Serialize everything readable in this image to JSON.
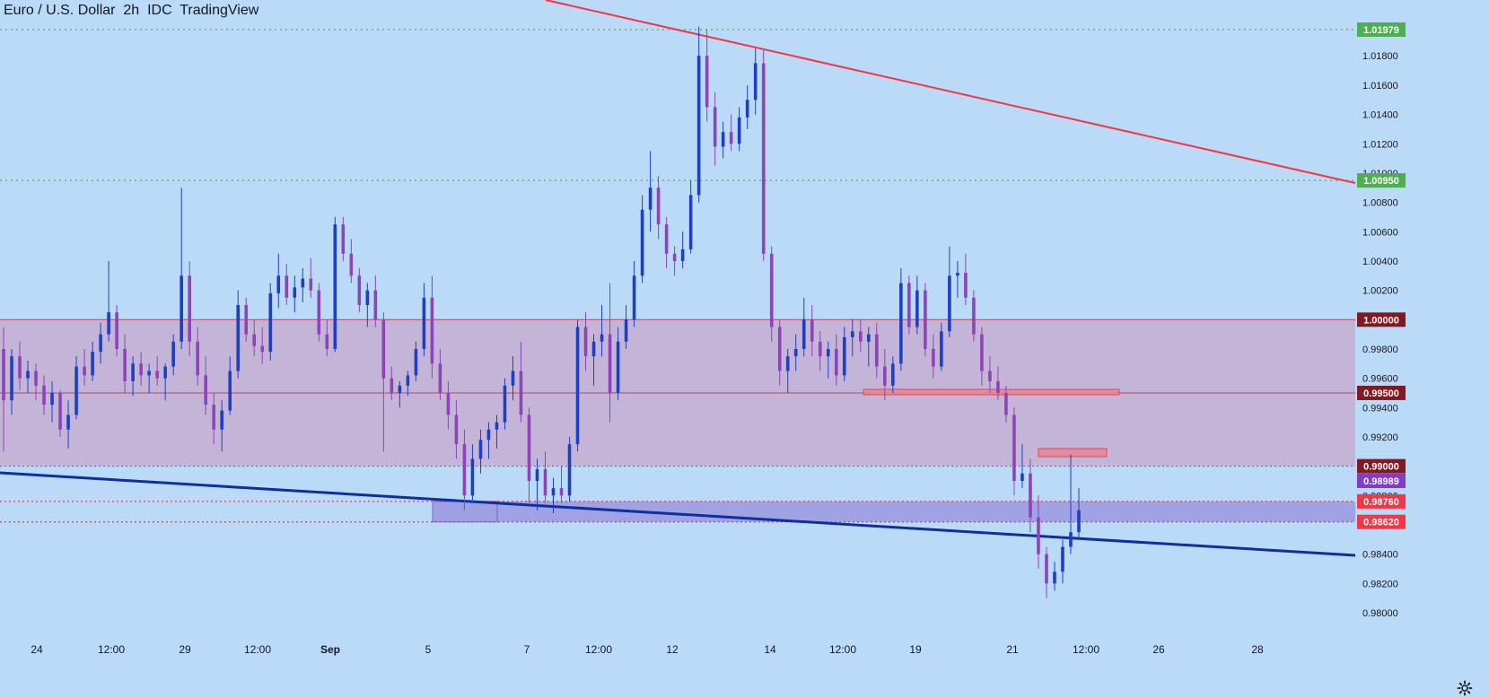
{
  "header": {
    "symbol": "Euro / U.S. Dollar",
    "interval": "2h",
    "source": "IDC",
    "platform": "TradingView"
  },
  "colors": {
    "background": "#bbdaf8",
    "candle_up": "#1e3fc4",
    "candle_down": "#8c44b6",
    "range_zone": "#c4b3d6",
    "support_zone": "#9f9fe3",
    "resistance_trendline": "#f23645",
    "support_trendline": "#0d2fa0",
    "level_line": "#b34766",
    "green_label": "#4caf50",
    "darkred_label": "#801922",
    "red_label": "#f23645",
    "purple_label": "#7e3ec7"
  },
  "icons": {
    "settings": "gear-icon"
  },
  "chart_data": {
    "type": "candlestick",
    "title": "Euro / U.S. Dollar · 2h · IDC",
    "y_axis": {
      "range": [
        0.979,
        1.0205
      ],
      "ticks": [
        "0.98000",
        "0.98200",
        "0.98400",
        "0.98600",
        "0.98800",
        "0.99200",
        "0.99400",
        "0.99600",
        "0.99800",
        "1.00200",
        "1.00400",
        "1.00600",
        "1.00800",
        "1.01000",
        "1.01200",
        "1.01400",
        "1.01600",
        "1.01800"
      ]
    },
    "x_axis": {
      "ticks": [
        "24",
        "12:00",
        "29",
        "12:00",
        "Sep",
        "5",
        "7",
        "12:00",
        "12",
        "14",
        "12:00",
        "19",
        "21",
        "12:00",
        "26",
        "28"
      ]
    },
    "price_labels": [
      {
        "value": "1.01979",
        "style": "green"
      },
      {
        "value": "1.00950",
        "style": "green"
      },
      {
        "value": "1.00000",
        "style": "darkred"
      },
      {
        "value": "0.99500",
        "style": "darkred"
      },
      {
        "value": "0.99000",
        "style": "darkred"
      },
      {
        "value": "0.98989",
        "style": "purple"
      },
      {
        "value": "0.98760",
        "style": "red"
      },
      {
        "value": "0.98620",
        "style": "red"
      }
    ],
    "horizontal_levels": [
      {
        "price": 1.01979,
        "style": "green-dotted"
      },
      {
        "price": 1.0095,
        "style": "green-dotted"
      },
      {
        "price": 1.0,
        "style": "level"
      },
      {
        "price": 0.995,
        "style": "level"
      },
      {
        "price": 0.99,
        "style": "level-dotted"
      },
      {
        "price": 0.9876,
        "style": "red-dotted"
      },
      {
        "price": 0.9862,
        "style": "red-dotted"
      }
    ],
    "zones": [
      {
        "name": "range",
        "from": 0.99,
        "to": 1.0
      },
      {
        "name": "support",
        "from": 0.9862,
        "to": 0.9876
      }
    ],
    "trendlines": [
      {
        "name": "resistance",
        "from_price": 1.0225,
        "to_price": 1.0093
      },
      {
        "name": "support",
        "from_price": 0.9895,
        "to_price": 0.9838
      }
    ],
    "candles": [
      [
        0.998,
        0.9995,
        0.991,
        0.9945
      ],
      [
        0.9945,
        0.998,
        0.9935,
        0.9975
      ],
      [
        0.9975,
        0.9985,
        0.9952,
        0.996
      ],
      [
        0.996,
        0.9972,
        0.995,
        0.9965
      ],
      [
        0.9965,
        0.997,
        0.9945,
        0.9955
      ],
      [
        0.9955,
        0.9962,
        0.9935,
        0.9942
      ],
      [
        0.9942,
        0.9958,
        0.993,
        0.995
      ],
      [
        0.995,
        0.9952,
        0.992,
        0.9925
      ],
      [
        0.9925,
        0.9945,
        0.9912,
        0.9935
      ],
      [
        0.9935,
        0.9975,
        0.9932,
        0.9968
      ],
      [
        0.9968,
        0.998,
        0.9955,
        0.9962
      ],
      [
        0.9962,
        0.9985,
        0.9958,
        0.9978
      ],
      [
        0.9978,
        0.9998,
        0.997,
        0.999
      ],
      [
        0.999,
        1.004,
        0.9985,
        1.0005
      ],
      [
        1.0005,
        1.001,
        0.9975,
        0.998
      ],
      [
        0.998,
        0.999,
        0.995,
        0.9958
      ],
      [
        0.9958,
        0.9975,
        0.9948,
        0.997
      ],
      [
        0.997,
        0.9978,
        0.9955,
        0.9962
      ],
      [
        0.9962,
        0.997,
        0.995,
        0.9965
      ],
      [
        0.9965,
        0.9975,
        0.9955,
        0.996
      ],
      [
        0.996,
        0.997,
        0.9945,
        0.9968
      ],
      [
        0.9968,
        0.999,
        0.9962,
        0.9985
      ],
      [
        0.9985,
        1.009,
        0.998,
        1.003
      ],
      [
        1.003,
        1.004,
        0.9975,
        0.9985
      ],
      [
        0.9985,
        0.9995,
        0.9955,
        0.9962
      ],
      [
        0.9962,
        0.9975,
        0.9935,
        0.9942
      ],
      [
        0.9942,
        0.995,
        0.9915,
        0.9925
      ],
      [
        0.9925,
        0.9945,
        0.991,
        0.9938
      ],
      [
        0.9938,
        0.9975,
        0.9935,
        0.9965
      ],
      [
        0.9965,
        1.002,
        0.996,
        1.001
      ],
      [
        1.001,
        1.0015,
        0.9985,
        0.999
      ],
      [
        0.999,
        1.0,
        0.9975,
        0.9982
      ],
      [
        0.9982,
        0.9995,
        0.997,
        0.9978
      ],
      [
        0.9978,
        1.0025,
        0.9972,
        1.0018
      ],
      [
        1.0018,
        1.0045,
        1.0008,
        1.003
      ],
      [
        1.003,
        1.0038,
        1.001,
        1.0015
      ],
      [
        1.0015,
        1.003,
        1.0005,
        1.0022
      ],
      [
        1.0022,
        1.0035,
        1.0012,
        1.0028
      ],
      [
        1.0028,
        1.0042,
        1.0015,
        1.002
      ],
      [
        1.002,
        1.0025,
        0.9985,
        0.999
      ],
      [
        0.999,
        1.0,
        0.9975,
        0.998
      ],
      [
        0.998,
        1.007,
        0.9978,
        1.0065
      ],
      [
        1.0065,
        1.007,
        1.004,
        1.0045
      ],
      [
        1.0045,
        1.0055,
        1.0025,
        1.003
      ],
      [
        1.003,
        1.0035,
        1.0005,
        1.001
      ],
      [
        1.001,
        1.0025,
        0.9995,
        1.002
      ],
      [
        1.002,
        1.003,
        0.9995,
        1.0
      ],
      [
        1.0,
        1.0005,
        0.991,
        0.996
      ],
      [
        0.996,
        0.9968,
        0.9945,
        0.995
      ],
      [
        0.995,
        0.9958,
        0.994,
        0.9955
      ],
      [
        0.9955,
        0.9965,
        0.9948,
        0.9962
      ],
      [
        0.9962,
        0.9985,
        0.9958,
        0.998
      ],
      [
        0.998,
        1.0025,
        0.9975,
        1.0015
      ],
      [
        1.0015,
        1.003,
        0.996,
        0.997
      ],
      [
        0.997,
        0.998,
        0.9945,
        0.995
      ],
      [
        0.995,
        0.9958,
        0.9925,
        0.9935
      ],
      [
        0.9935,
        0.9945,
        0.9905,
        0.9915
      ],
      [
        0.9915,
        0.9925,
        0.987,
        0.988
      ],
      [
        0.988,
        0.9915,
        0.9875,
        0.9905
      ],
      [
        0.9905,
        0.9925,
        0.9895,
        0.9918
      ],
      [
        0.9918,
        0.993,
        0.9905,
        0.9925
      ],
      [
        0.9925,
        0.9935,
        0.9912,
        0.993
      ],
      [
        0.993,
        0.996,
        0.9925,
        0.9955
      ],
      [
        0.9955,
        0.9975,
        0.9945,
        0.9965
      ],
      [
        0.9965,
        0.9985,
        0.993,
        0.9935
      ],
      [
        0.9935,
        0.994,
        0.9875,
        0.989
      ],
      [
        0.989,
        0.9905,
        0.987,
        0.9898
      ],
      [
        0.9898,
        0.991,
        0.9875,
        0.988
      ],
      [
        0.988,
        0.9892,
        0.9868,
        0.9885
      ],
      [
        0.9885,
        0.99,
        0.9875,
        0.988
      ],
      [
        0.988,
        0.992,
        0.9876,
        0.9915
      ],
      [
        0.9915,
        1.0,
        0.991,
        0.9995
      ],
      [
        0.9995,
        1.0005,
        0.9965,
        0.9975
      ],
      [
        0.9975,
        0.999,
        0.9955,
        0.9985
      ],
      [
        0.9985,
        1.001,
        0.9975,
        0.999
      ],
      [
        0.999,
        1.0025,
        0.993,
        0.995
      ],
      [
        0.995,
        0.9995,
        0.9945,
        0.9985
      ],
      [
        0.9985,
        1.001,
        0.998,
        1.0
      ],
      [
        1.0,
        1.004,
        0.9995,
        1.003
      ],
      [
        1.003,
        1.0085,
        1.0025,
        1.0075
      ],
      [
        1.0075,
        1.0115,
        1.006,
        1.009
      ],
      [
        1.009,
        1.0098,
        1.0055,
        1.0065
      ],
      [
        1.0065,
        1.007,
        1.0035,
        1.0045
      ],
      [
        1.0045,
        1.005,
        1.003,
        1.004
      ],
      [
        1.004,
        1.006,
        1.0035,
        1.0048
      ],
      [
        1.0048,
        1.0095,
        1.0045,
        1.0085
      ],
      [
        1.0085,
        1.02,
        1.008,
        1.018
      ],
      [
        1.018,
        1.0198,
        1.0135,
        1.0145
      ],
      [
        1.0145,
        1.0155,
        1.0105,
        1.0118
      ],
      [
        1.0118,
        1.0135,
        1.011,
        1.0128
      ],
      [
        1.0128,
        1.014,
        1.0115,
        1.012
      ],
      [
        1.012,
        1.0145,
        1.0115,
        1.0138
      ],
      [
        1.0138,
        1.016,
        1.013,
        1.015
      ],
      [
        1.015,
        1.0185,
        1.014,
        1.0175
      ],
      [
        1.0175,
        1.0185,
        1.004,
        1.0045
      ],
      [
        1.0045,
        1.005,
        0.9985,
        0.9995
      ],
      [
        0.9995,
        1.0,
        0.9955,
        0.9965
      ],
      [
        0.9965,
        0.998,
        0.995,
        0.9975
      ],
      [
        0.9975,
        0.999,
        0.9965,
        0.998
      ],
      [
        0.998,
        1.0015,
        0.9975,
        1.0
      ],
      [
        1.0,
        1.001,
        0.9975,
        0.9985
      ],
      [
        0.9985,
        0.9992,
        0.9965,
        0.9975
      ],
      [
        0.9975,
        0.9985,
        0.996,
        0.998
      ],
      [
        0.998,
        0.999,
        0.9955,
        0.9962
      ],
      [
        0.9962,
        0.9995,
        0.9958,
        0.9988
      ],
      [
        0.9988,
        1.0,
        0.9975,
        0.9992
      ],
      [
        0.9992,
        1.0,
        0.9978,
        0.9985
      ],
      [
        0.9985,
        0.9995,
        0.9968,
        0.999
      ],
      [
        0.999,
        0.9998,
        0.996,
        0.9968
      ],
      [
        0.9968,
        0.998,
        0.9945,
        0.9955
      ],
      [
        0.9955,
        0.9975,
        0.995,
        0.997
      ],
      [
        0.997,
        1.0035,
        0.9965,
        1.0025
      ],
      [
        1.0025,
        1.003,
        0.999,
        0.9995
      ],
      [
        0.9995,
        1.003,
        0.999,
        1.002
      ],
      [
        1.002,
        1.0025,
        0.9975,
        0.998
      ],
      [
        0.998,
        0.999,
        0.996,
        0.9968
      ],
      [
        0.9968,
        0.9998,
        0.9965,
        0.9992
      ],
      [
        0.9992,
        1.005,
        0.9988,
        1.003
      ],
      [
        1.003,
        1.004,
        1.0015,
        1.0032
      ],
      [
        1.0032,
        1.0045,
        1.001,
        1.0015
      ],
      [
        1.0015,
        1.002,
        0.9985,
        0.999
      ],
      [
        0.999,
        0.9995,
        0.9955,
        0.9965
      ],
      [
        0.9965,
        0.9975,
        0.995,
        0.9958
      ],
      [
        0.9958,
        0.9968,
        0.9945,
        0.995
      ],
      [
        0.995,
        0.9955,
        0.993,
        0.9935
      ],
      [
        0.9935,
        0.994,
        0.988,
        0.989
      ],
      [
        0.989,
        0.9915,
        0.9885,
        0.9895
      ],
      [
        0.9895,
        0.9905,
        0.9855,
        0.9865
      ],
      [
        0.9865,
        0.988,
        0.983,
        0.984
      ],
      [
        0.984,
        0.9845,
        0.981,
        0.982
      ],
      [
        0.982,
        0.9835,
        0.9815,
        0.9828
      ],
      [
        0.9828,
        0.985,
        0.982,
        0.9845
      ],
      [
        0.9845,
        0.9908,
        0.984,
        0.9855
      ],
      [
        0.9855,
        0.9885,
        0.985,
        0.987
      ]
    ]
  }
}
